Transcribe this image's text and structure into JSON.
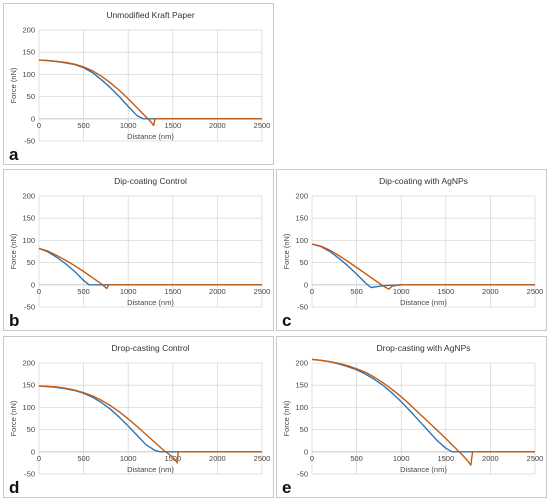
{
  "colors": {
    "series_1": "#2e75b6",
    "series_2": "#c55a11"
  },
  "chart_data": [
    {
      "panel_label": "a",
      "title": "Unmodified Kraft Paper",
      "type": "line",
      "xlabel": "Distance (nm)",
      "ylabel": "Force (nN)",
      "xlim": [
        0,
        2500
      ],
      "ylim": [
        -50,
        200
      ],
      "xticks": [
        "0",
        "500",
        "1000",
        "1500",
        "2000",
        "2500"
      ],
      "yticks": [
        "-50",
        "0",
        "50",
        "100",
        "150",
        "200"
      ],
      "grid": true,
      "series": [
        {
          "color": "#2e75b6",
          "x": [
            0,
            100,
            200,
            300,
            400,
            500,
            600,
            700,
            800,
            900,
            1000,
            1100,
            1170,
            1300,
            1500,
            2000,
            2500
          ],
          "y": [
            132,
            131,
            129,
            126,
            122,
            115,
            104,
            88,
            70,
            50,
            28,
            7,
            0,
            0,
            0,
            0,
            0
          ]
        },
        {
          "color": "#c55a11",
          "x": [
            0,
            100,
            200,
            300,
            400,
            500,
            600,
            700,
            800,
            900,
            1000,
            1100,
            1200,
            1255,
            1285,
            1300,
            1500,
            2000,
            2500
          ],
          "y": [
            132,
            131,
            129,
            127,
            123,
            117,
            108,
            96,
            81,
            64,
            45,
            25,
            4,
            -7,
            -15,
            0,
            0,
            0,
            0
          ]
        }
      ]
    },
    {
      "panel_label": "b",
      "title": "Dip-coating Control",
      "type": "line",
      "xlabel": "Distance (nm)",
      "ylabel": "Force (nN)",
      "xlim": [
        0,
        2500
      ],
      "ylim": [
        -50,
        200
      ],
      "xticks": [
        "0",
        "500",
        "1000",
        "1500",
        "2000",
        "2500"
      ],
      "yticks": [
        "-50",
        "0",
        "50",
        "100",
        "150",
        "200"
      ],
      "grid": true,
      "series": [
        {
          "color": "#2e75b6",
          "x": [
            0,
            100,
            200,
            300,
            400,
            500,
            560,
            700,
            1000,
            1500,
            2000,
            2500
          ],
          "y": [
            82,
            74,
            62,
            47,
            30,
            10,
            0,
            0,
            0,
            0,
            0,
            0
          ]
        },
        {
          "color": "#c55a11",
          "x": [
            0,
            100,
            200,
            300,
            400,
            500,
            600,
            700,
            760,
            780,
            1000,
            1500,
            2000,
            2500
          ],
          "y": [
            82,
            76,
            66,
            55,
            43,
            30,
            16,
            2,
            -8,
            0,
            0,
            0,
            0,
            0
          ]
        }
      ]
    },
    {
      "panel_label": "c",
      "title": "Dip-coating with AgNPs",
      "type": "line",
      "xlabel": "Distance (nm)",
      "ylabel": "Force (nN)",
      "xlim": [
        0,
        2500
      ],
      "ylim": [
        -50,
        200
      ],
      "xticks": [
        "0",
        "500",
        "1000",
        "1500",
        "2000",
        "2500"
      ],
      "yticks": [
        "-50",
        "0",
        "50",
        "100",
        "150",
        "200"
      ],
      "grid": true,
      "series": [
        {
          "color": "#2e75b6",
          "x": [
            0,
            100,
            200,
            300,
            400,
            500,
            600,
            660,
            800,
            1000,
            1500,
            2000,
            2500
          ],
          "y": [
            92,
            86,
            75,
            60,
            43,
            24,
            4,
            -6,
            -2,
            0,
            0,
            0,
            0
          ]
        },
        {
          "color": "#c55a11",
          "x": [
            0,
            100,
            200,
            300,
            400,
            500,
            600,
            700,
            800,
            860,
            900,
            1000,
            1500,
            2000,
            2500
          ],
          "y": [
            92,
            87,
            78,
            66,
            53,
            39,
            25,
            11,
            -3,
            -10,
            -3,
            0,
            0,
            0,
            0
          ]
        }
      ]
    },
    {
      "panel_label": "d",
      "title": "Drop-casting Control",
      "type": "line",
      "xlabel": "Distance (nm)",
      "ylabel": "Force (nN)",
      "xlim": [
        0,
        2500
      ],
      "ylim": [
        -50,
        200
      ],
      "xticks": [
        "0",
        "500",
        "1000",
        "1500",
        "2000",
        "2500"
      ],
      "yticks": [
        "-50",
        "0",
        "50",
        "100",
        "150",
        "200"
      ],
      "grid": true,
      "series": [
        {
          "color": "#2e75b6",
          "x": [
            0,
            100,
            200,
            300,
            400,
            500,
            600,
            700,
            800,
            900,
            1000,
            1100,
            1200,
            1300,
            1360,
            1500,
            2000,
            2500
          ],
          "y": [
            148,
            147,
            145,
            142,
            138,
            132,
            123,
            111,
            96,
            78,
            58,
            37,
            16,
            3,
            0,
            0,
            0,
            0
          ]
        },
        {
          "color": "#c55a11",
          "x": [
            0,
            100,
            200,
            300,
            400,
            500,
            600,
            700,
            800,
            900,
            1000,
            1100,
            1200,
            1300,
            1400,
            1500,
            1550,
            1560,
            1600,
            2000,
            2500
          ],
          "y": [
            148,
            147,
            146,
            143,
            139,
            133,
            126,
            116,
            104,
            90,
            74,
            57,
            39,
            21,
            3,
            -12,
            -25,
            0,
            0,
            0,
            0
          ]
        }
      ]
    },
    {
      "panel_label": "e",
      "title": "Drop-casting with AgNPs",
      "type": "line",
      "xlabel": "Distance (nm)",
      "ylabel": "Force (nN)",
      "xlim": [
        0,
        2500
      ],
      "ylim": [
        -50,
        200
      ],
      "xticks": [
        "0",
        "500",
        "1000",
        "1500",
        "2000",
        "2500"
      ],
      "yticks": [
        "-50",
        "0",
        "50",
        "100",
        "150",
        "200"
      ],
      "grid": true,
      "series": [
        {
          "color": "#2e75b6",
          "x": [
            0,
            100,
            200,
            300,
            400,
            500,
            600,
            700,
            800,
            900,
            1000,
            1100,
            1200,
            1300,
            1400,
            1500,
            1570,
            1700,
            2000,
            2500
          ],
          "y": [
            208,
            206,
            203,
            198,
            192,
            185,
            175,
            163,
            149,
            132,
            113,
            92,
            70,
            48,
            26,
            8,
            0,
            0,
            0,
            0
          ]
        },
        {
          "color": "#c55a11",
          "x": [
            0,
            100,
            200,
            300,
            400,
            500,
            600,
            700,
            800,
            900,
            1000,
            1100,
            1200,
            1300,
            1400,
            1500,
            1600,
            1700,
            1760,
            1780,
            1800,
            2000,
            2500
          ],
          "y": [
            208,
            206,
            203,
            199,
            194,
            187,
            179,
            168,
            155,
            140,
            124,
            106,
            87,
            68,
            49,
            30,
            10,
            -10,
            -24,
            -30,
            0,
            0,
            0
          ]
        }
      ]
    }
  ]
}
